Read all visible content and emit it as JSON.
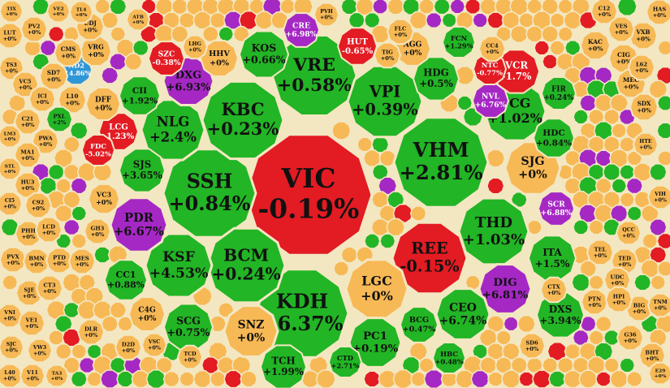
{
  "colors": {
    "up": "#22b525",
    "down": "#e31b23",
    "flat": "#f7b955",
    "ceiling": "#a528c4",
    "floor": "#2f96d8",
    "border": "#f3e7c2",
    "text_dark": "#111111",
    "text_light": "#ffffff"
  },
  "chart_data": {
    "type": "treemap",
    "title": "",
    "cells": [
      {
        "ticker": "VIC",
        "change": "-0.19%",
        "status": "down"
      },
      {
        "ticker": "VHM",
        "change": "+2.81%",
        "status": "up"
      },
      {
        "ticker": "SSH",
        "change": "+0.84%",
        "status": "up"
      },
      {
        "ticker": "KDH",
        "change": "+6.37%",
        "status": "up"
      },
      {
        "ticker": "REE",
        "change": "-0.15%",
        "status": "down"
      },
      {
        "ticker": "VRE",
        "change": "+0.58%",
        "status": "up"
      },
      {
        "ticker": "KBC",
        "change": "+0.23%",
        "status": "up"
      },
      {
        "ticker": "BCM",
        "change": "+0.24%",
        "status": "up"
      },
      {
        "ticker": "VPI",
        "change": "+0.39%",
        "status": "up"
      },
      {
        "ticker": "THD",
        "change": "+1.03%",
        "status": "up"
      },
      {
        "ticker": "KSF",
        "change": "+4.53%",
        "status": "up"
      },
      {
        "ticker": "NLG",
        "change": "+2.4%",
        "status": "up"
      },
      {
        "ticker": "LGC",
        "change": "+0%",
        "status": "flat"
      },
      {
        "ticker": "SJG",
        "change": "+0%",
        "status": "flat"
      },
      {
        "ticker": "VCG",
        "change": "+1.02%",
        "status": "up"
      },
      {
        "ticker": "PDR",
        "change": "+6.67%",
        "status": "ceiling"
      },
      {
        "ticker": "DIG",
        "change": "+6.81%",
        "status": "ceiling"
      },
      {
        "ticker": "SNZ",
        "change": "+0%",
        "status": "flat"
      },
      {
        "ticker": "PC1",
        "change": "+0.19%",
        "status": "up"
      },
      {
        "ticker": "CEO",
        "change": "+6.74%",
        "status": "up"
      },
      {
        "ticker": "DXG",
        "change": "+6.93%",
        "status": "ceiling"
      },
      {
        "ticker": "KOS",
        "change": "+0.66%",
        "status": "up"
      },
      {
        "ticker": "SCG",
        "change": "+0.75%",
        "status": "up"
      },
      {
        "ticker": "TCH",
        "change": "+1.99%",
        "status": "up"
      },
      {
        "ticker": "ITA",
        "change": "+1.5%",
        "status": "up"
      },
      {
        "ticker": "DXS",
        "change": "+3.94%",
        "status": "up"
      },
      {
        "ticker": "VCR",
        "change": "-1.7%",
        "status": "down"
      },
      {
        "ticker": "HDG",
        "change": "+0.5%",
        "status": "up"
      },
      {
        "ticker": "SJS",
        "change": "+3.65%",
        "status": "up"
      },
      {
        "ticker": "HUT",
        "change": "-0.65%",
        "status": "down"
      },
      {
        "ticker": "HHV",
        "change": "+0%",
        "status": "flat"
      },
      {
        "ticker": "CRE",
        "change": "+6.98%",
        "status": "ceiling"
      },
      {
        "ticker": "AGG",
        "change": "+0%",
        "status": "flat"
      },
      {
        "ticker": "CII",
        "change": "+1.92%",
        "status": "up"
      },
      {
        "ticker": "LCG",
        "change": "-1.23%",
        "status": "down"
      },
      {
        "ticker": "CC1",
        "change": "+0.88%",
        "status": "up"
      },
      {
        "ticker": "C4G",
        "change": "+0%",
        "status": "flat"
      },
      {
        "ticker": "BCG",
        "change": "+0.47%",
        "status": "up"
      },
      {
        "ticker": "CTD",
        "change": "+2.71%",
        "status": "up"
      },
      {
        "ticker": "HDC",
        "change": "+0.84%",
        "status": "up"
      },
      {
        "ticker": "NVL",
        "change": "+6.76%",
        "status": "ceiling"
      },
      {
        "ticker": "SCR",
        "change": "+6.88%",
        "status": "ceiling"
      },
      {
        "ticker": "SZC",
        "change": "-0.38%",
        "status": "down"
      },
      {
        "ticker": "DFF",
        "change": "+0%",
        "status": "flat"
      },
      {
        "ticker": "FCN",
        "change": "+1.29%",
        "status": "up"
      },
      {
        "ticker": "NTC",
        "change": "-0.77%",
        "status": "down"
      },
      {
        "ticker": "VC3",
        "change": "+0%",
        "status": "flat"
      },
      {
        "ticker": "FDC",
        "change": "-5.02%",
        "status": "down"
      },
      {
        "ticker": "ND2",
        "change": "-14.86%",
        "status": "floor"
      },
      {
        "ticker": "VRG",
        "change": "+0%",
        "status": "flat"
      },
      {
        "ticker": "UDJ",
        "change": "+0%",
        "status": "flat"
      },
      {
        "ticker": "HBC",
        "change": "+0.48%",
        "status": "up"
      },
      {
        "ticker": "FIR",
        "change": "+0.24%",
        "status": "up"
      },
      {
        "ticker": "KAC",
        "change": "+0%",
        "status": "flat"
      },
      {
        "ticker": "CIG",
        "change": "+0%",
        "status": "flat"
      },
      {
        "ticker": "MEC",
        "change": "+0%",
        "status": "flat"
      },
      {
        "ticker": "SDX",
        "change": "+0%",
        "status": "flat"
      },
      {
        "ticker": "VXB",
        "change": "+0%",
        "status": "flat"
      },
      {
        "ticker": "VES",
        "change": "+0%",
        "status": "flat"
      },
      {
        "ticker": "HAS",
        "change": "+0%",
        "status": "flat"
      },
      {
        "ticker": "C12",
        "change": "+0%",
        "status": "flat"
      },
      {
        "ticker": "L62",
        "change": "+0%",
        "status": "flat"
      },
      {
        "ticker": "LUT",
        "change": "+0%",
        "status": "flat"
      },
      {
        "ticker": "TS3",
        "change": "+0%",
        "status": "flat"
      },
      {
        "ticker": "VC5",
        "change": "+0%",
        "status": "flat"
      },
      {
        "ticker": "ICI",
        "change": "+0%",
        "status": "flat"
      },
      {
        "ticker": "PV2",
        "change": "+0%",
        "status": "flat"
      },
      {
        "ticker": "SD7",
        "change": "+0%",
        "status": "flat"
      },
      {
        "ticker": "CMS",
        "change": "+0%",
        "status": "flat"
      },
      {
        "ticker": "L10",
        "change": "+0%",
        "status": "flat"
      },
      {
        "ticker": "PXL",
        "change": "+2%",
        "status": "up"
      },
      {
        "ticker": "C21",
        "change": "+0%",
        "status": "flat"
      },
      {
        "ticker": "PWA",
        "change": "+0%",
        "status": "flat"
      },
      {
        "ticker": "MA1",
        "change": "+0%",
        "status": "flat"
      },
      {
        "ticker": "HU3",
        "change": "+0%",
        "status": "flat"
      },
      {
        "ticker": "CI5",
        "change": "+0%",
        "status": "flat"
      },
      {
        "ticker": "C92",
        "change": "+0%",
        "status": "flat"
      },
      {
        "ticker": "PHH",
        "change": "+0%",
        "status": "flat"
      },
      {
        "ticker": "LCD",
        "change": "+0%",
        "status": "flat"
      },
      {
        "ticker": "GH3",
        "change": "+0%",
        "status": "flat"
      },
      {
        "ticker": "PVX",
        "change": "+0%",
        "status": "flat"
      },
      {
        "ticker": "BMN",
        "change": "+0%",
        "status": "flat"
      },
      {
        "ticker": "PTD",
        "change": "+0%",
        "status": "flat"
      },
      {
        "ticker": "MES",
        "change": "+0%",
        "status": "flat"
      },
      {
        "ticker": "SJE",
        "change": "+0%",
        "status": "flat"
      },
      {
        "ticker": "CT3",
        "change": "+0%",
        "status": "flat"
      },
      {
        "ticker": "VNI",
        "change": "+0%",
        "status": "flat"
      },
      {
        "ticker": "VE1",
        "change": "+0%",
        "status": "flat"
      },
      {
        "ticker": "SJC",
        "change": "+0%",
        "status": "flat"
      },
      {
        "ticker": "VW3",
        "change": "+0%",
        "status": "flat"
      },
      {
        "ticker": "L40",
        "change": "+0%",
        "status": "flat"
      },
      {
        "ticker": "V11",
        "change": "+0%",
        "status": "flat"
      },
      {
        "ticker": "TA3",
        "change": "+0%",
        "status": "flat"
      },
      {
        "ticker": "DLR",
        "change": "+0%",
        "status": "flat"
      },
      {
        "ticker": "D2D",
        "change": "+0%",
        "status": "flat"
      },
      {
        "ticker": "VSC",
        "change": "+0%",
        "status": "flat"
      },
      {
        "ticker": "TCD",
        "change": "+0%",
        "status": "flat"
      },
      {
        "ticker": "BIG",
        "change": "+0%",
        "status": "flat"
      },
      {
        "ticker": "TEL",
        "change": "+0%",
        "status": "flat"
      },
      {
        "ticker": "TED",
        "change": "+0%",
        "status": "flat"
      },
      {
        "ticker": "UDC",
        "change": "+0%",
        "status": "flat"
      },
      {
        "ticker": "PTN",
        "change": "+0%",
        "status": "flat"
      },
      {
        "ticker": "CTX",
        "change": "+0%",
        "status": "flat"
      },
      {
        "ticker": "HPI",
        "change": "+0%",
        "status": "flat"
      },
      {
        "ticker": "SD6",
        "change": "+0%",
        "status": "flat"
      },
      {
        "ticker": "G36",
        "change": "+0%",
        "status": "flat"
      },
      {
        "ticker": "BHT",
        "change": "+0%",
        "status": "flat"
      },
      {
        "ticker": "E29",
        "change": "+0%",
        "status": "flat"
      },
      {
        "ticker": "VIH",
        "change": "+0%",
        "status": "flat"
      },
      {
        "ticker": "TNM",
        "change": "+0%",
        "status": "flat"
      },
      {
        "ticker": "QCC",
        "change": "+0%",
        "status": "flat"
      },
      {
        "ticker": "HTE",
        "change": "+0%",
        "status": "flat"
      },
      {
        "ticker": "PVH",
        "change": "+0%",
        "status": "flat"
      },
      {
        "ticker": "TIG",
        "change": "+0%",
        "status": "flat"
      },
      {
        "ticker": "FLC",
        "change": "+0%",
        "status": "flat"
      },
      {
        "ticker": "LHG",
        "change": "+0%",
        "status": "flat"
      },
      {
        "ticker": "CC4",
        "change": "+0%",
        "status": "flat"
      },
      {
        "ticker": "TIX",
        "change": "+0%",
        "status": "flat"
      },
      {
        "ticker": "ATB",
        "change": "+0%",
        "status": "flat"
      },
      {
        "ticker": "TL4",
        "change": "+0%",
        "status": "flat"
      },
      {
        "ticker": "VE2",
        "change": "+0%",
        "status": "flat"
      },
      {
        "ticker": "LM3",
        "change": "+0%",
        "status": "flat"
      },
      {
        "ticker": "STL",
        "change": "+0%",
        "status": "flat"
      },
      {
        "ticker": "LTC",
        "change": "+0%",
        "status": "flat"
      }
    ]
  }
}
